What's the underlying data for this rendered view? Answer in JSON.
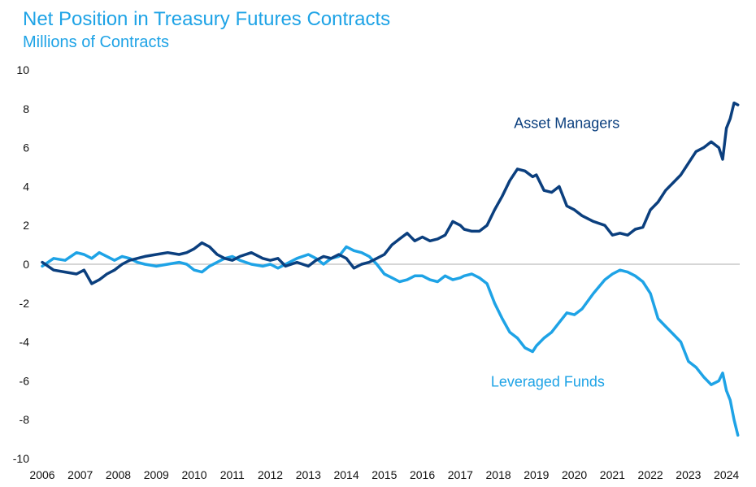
{
  "chart_data": {
    "type": "line",
    "title": "Net Position in Treasury Futures Contracts",
    "subtitle": "Millions of Contracts",
    "xlabel": "",
    "ylabel": "",
    "xlim": [
      2006.0,
      2024.35
    ],
    "ylim": [
      -10,
      10
    ],
    "y_ticks": [
      10,
      8,
      6,
      4,
      2,
      0,
      -2,
      -4,
      -6,
      -8,
      -10
    ],
    "x_ticks": [
      2006,
      2007,
      2008,
      2009,
      2010,
      2011,
      2012,
      2013,
      2014,
      2015,
      2016,
      2017,
      2018,
      2019,
      2020,
      2021,
      2022,
      2023,
      2024
    ],
    "zero_line": true,
    "colors": {
      "asset_managers": "#0b3f7e",
      "leveraged_funds": "#1ea3e6",
      "title": "#1ea3e6",
      "zero_line": "#c8c8c8"
    },
    "series": [
      {
        "name": "Asset Managers",
        "label_position": [
          2019.8,
          7.0
        ],
        "x": [
          2006.0,
          2006.3,
          2006.6,
          2006.9,
          2007.1,
          2007.3,
          2007.5,
          2007.7,
          2007.9,
          2008.1,
          2008.3,
          2008.5,
          2008.7,
          2009.0,
          2009.3,
          2009.6,
          2009.8,
          2010.0,
          2010.2,
          2010.4,
          2010.6,
          2010.8,
          2011.0,
          2011.2,
          2011.5,
          2011.8,
          2012.0,
          2012.2,
          2012.4,
          2012.7,
          2013.0,
          2013.2,
          2013.4,
          2013.6,
          2013.8,
          2014.0,
          2014.2,
          2014.4,
          2014.6,
          2014.8,
          2015.0,
          2015.2,
          2015.4,
          2015.6,
          2015.8,
          2016.0,
          2016.2,
          2016.4,
          2016.6,
          2016.8,
          2017.0,
          2017.1,
          2017.3,
          2017.5,
          2017.7,
          2017.9,
          2018.1,
          2018.3,
          2018.5,
          2018.7,
          2018.9,
          2019.0,
          2019.2,
          2019.4,
          2019.6,
          2019.8,
          2020.0,
          2020.2,
          2020.5,
          2020.8,
          2021.0,
          2021.2,
          2021.4,
          2021.6,
          2021.8,
          2022.0,
          2022.2,
          2022.4,
          2022.6,
          2022.8,
          2023.0,
          2023.2,
          2023.4,
          2023.6,
          2023.8,
          2023.9,
          2024.0,
          2024.1,
          2024.2,
          2024.3
        ],
        "values": [
          0.1,
          -0.3,
          -0.4,
          -0.5,
          -0.3,
          -1.0,
          -0.8,
          -0.5,
          -0.3,
          0.0,
          0.2,
          0.3,
          0.4,
          0.5,
          0.6,
          0.5,
          0.6,
          0.8,
          1.1,
          0.9,
          0.5,
          0.3,
          0.2,
          0.4,
          0.6,
          0.3,
          0.2,
          0.3,
          -0.1,
          0.1,
          -0.1,
          0.2,
          0.4,
          0.3,
          0.5,
          0.3,
          -0.2,
          0.0,
          0.1,
          0.3,
          0.5,
          1.0,
          1.3,
          1.6,
          1.2,
          1.4,
          1.2,
          1.3,
          1.5,
          2.2,
          2.0,
          1.8,
          1.7,
          1.7,
          2.0,
          2.8,
          3.5,
          4.3,
          4.9,
          4.8,
          4.5,
          4.6,
          3.8,
          3.7,
          4.0,
          3.0,
          2.8,
          2.5,
          2.2,
          2.0,
          1.5,
          1.6,
          1.5,
          1.8,
          1.9,
          2.8,
          3.2,
          3.8,
          4.2,
          4.6,
          5.2,
          5.8,
          6.0,
          6.3,
          6.0,
          5.4,
          7.0,
          7.5,
          8.3,
          8.2
        ]
      },
      {
        "name": "Leveraged Funds",
        "label_position": [
          2019.3,
          -6.3
        ],
        "x": [
          2006.0,
          2006.3,
          2006.6,
          2006.9,
          2007.1,
          2007.3,
          2007.5,
          2007.7,
          2007.9,
          2008.1,
          2008.3,
          2008.5,
          2008.7,
          2009.0,
          2009.3,
          2009.6,
          2009.8,
          2010.0,
          2010.2,
          2010.4,
          2010.6,
          2010.8,
          2011.0,
          2011.2,
          2011.5,
          2011.8,
          2012.0,
          2012.2,
          2012.4,
          2012.7,
          2013.0,
          2013.2,
          2013.4,
          2013.6,
          2013.8,
          2014.0,
          2014.2,
          2014.4,
          2014.6,
          2014.8,
          2015.0,
          2015.2,
          2015.4,
          2015.6,
          2015.8,
          2016.0,
          2016.2,
          2016.4,
          2016.6,
          2016.8,
          2017.0,
          2017.1,
          2017.3,
          2017.5,
          2017.7,
          2017.9,
          2018.1,
          2018.3,
          2018.5,
          2018.7,
          2018.9,
          2019.0,
          2019.2,
          2019.4,
          2019.6,
          2019.8,
          2020.0,
          2020.2,
          2020.5,
          2020.8,
          2021.0,
          2021.2,
          2021.4,
          2021.6,
          2021.8,
          2022.0,
          2022.2,
          2022.4,
          2022.6,
          2022.8,
          2023.0,
          2023.2,
          2023.4,
          2023.6,
          2023.8,
          2023.9,
          2024.0,
          2024.1,
          2024.2,
          2024.3
        ],
        "values": [
          -0.1,
          0.3,
          0.2,
          0.6,
          0.5,
          0.3,
          0.6,
          0.4,
          0.2,
          0.4,
          0.3,
          0.1,
          0.0,
          -0.1,
          0.0,
          0.1,
          0.0,
          -0.3,
          -0.4,
          -0.1,
          0.1,
          0.3,
          0.4,
          0.2,
          0.0,
          -0.1,
          0.0,
          -0.2,
          0.0,
          0.3,
          0.5,
          0.3,
          0.0,
          0.3,
          0.4,
          0.9,
          0.7,
          0.6,
          0.4,
          0.0,
          -0.5,
          -0.7,
          -0.9,
          -0.8,
          -0.6,
          -0.6,
          -0.8,
          -0.9,
          -0.6,
          -0.8,
          -0.7,
          -0.6,
          -0.5,
          -0.7,
          -1.0,
          -2.0,
          -2.8,
          -3.5,
          -3.8,
          -4.3,
          -4.5,
          -4.2,
          -3.8,
          -3.5,
          -3.0,
          -2.5,
          -2.6,
          -2.3,
          -1.5,
          -0.8,
          -0.5,
          -0.3,
          -0.4,
          -0.6,
          -0.9,
          -1.5,
          -2.8,
          -3.2,
          -3.6,
          -4.0,
          -5.0,
          -5.3,
          -5.8,
          -6.2,
          -6.0,
          -5.6,
          -6.5,
          -7.0,
          -8.0,
          -8.8
        ]
      }
    ]
  }
}
